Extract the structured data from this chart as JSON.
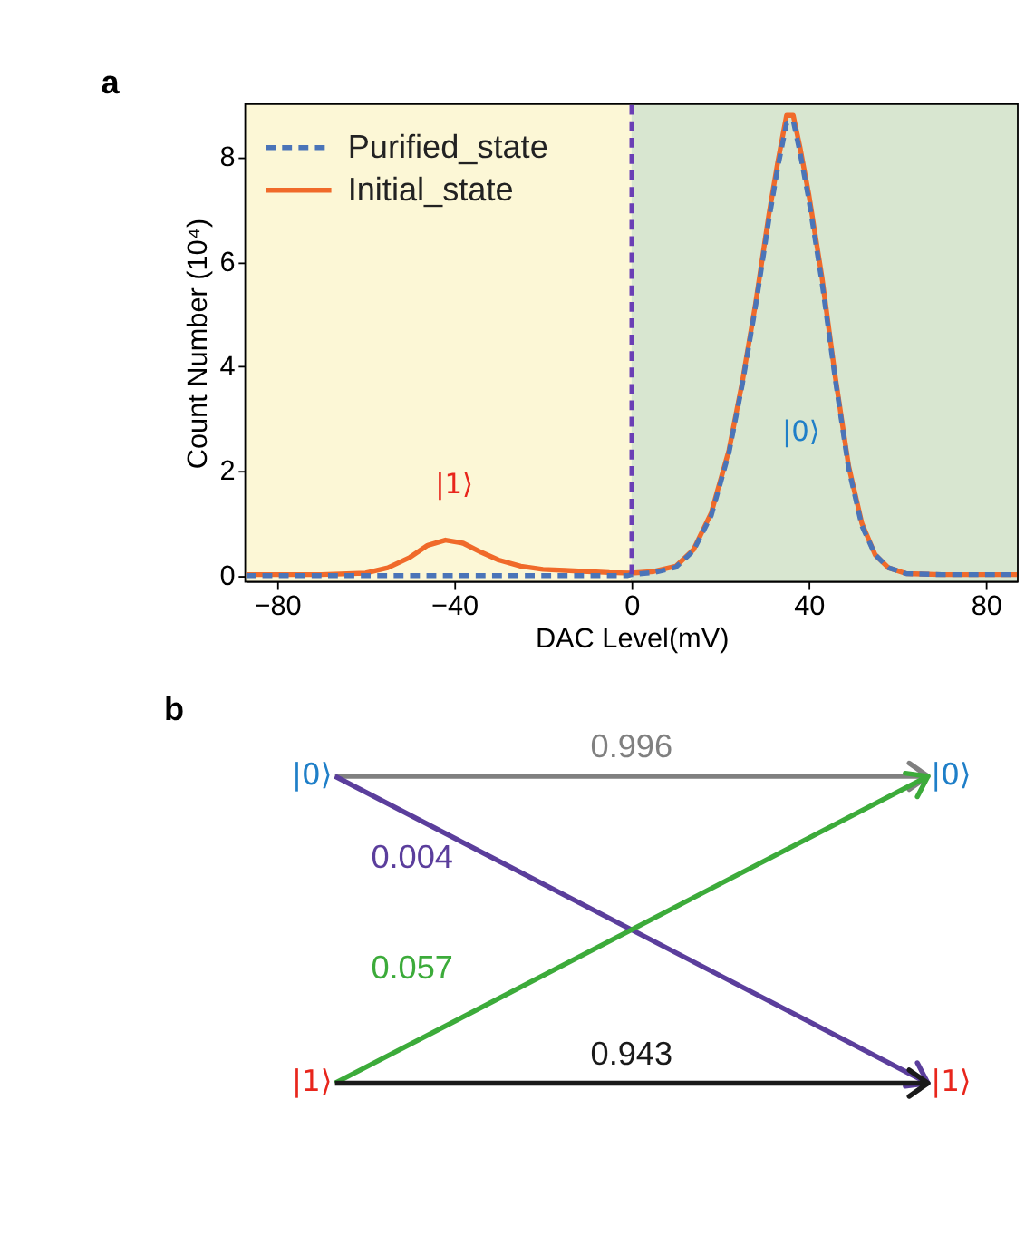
{
  "chart_data": [
    {
      "type": "line",
      "title": "a",
      "xlabel": "DAC Level(mV)",
      "ylabel": "Count Number (10⁴)",
      "xlim": [
        -87,
        87
      ],
      "xticks": [
        -80,
        -40,
        0,
        40,
        80
      ],
      "ylim": [
        -0.1,
        9
      ],
      "yticks": [
        0,
        2,
        4,
        6,
        8
      ],
      "grid": false,
      "legend": "top left",
      "series": [
        {
          "name": "Purified_state",
          "color": "#4a74b8",
          "line_style": "dashed",
          "x": [
            -87,
            -1,
            0,
            5,
            10,
            14,
            18,
            22,
            25,
            28,
            31,
            33,
            35,
            36.5,
            38,
            40,
            43,
            46,
            49,
            52,
            55,
            58,
            62,
            70,
            87
          ],
          "values": [
            0,
            0,
            0.02,
            0.06,
            0.16,
            0.48,
            1.15,
            2.35,
            3.65,
            5.15,
            6.8,
            7.8,
            8.65,
            8.7,
            8.1,
            7.2,
            5.6,
            3.75,
            2.05,
            0.95,
            0.4,
            0.15,
            0.04,
            0.02,
            0.02
          ]
        },
        {
          "name": "Initial_state",
          "color": "#f06a2a",
          "line_style": "solid",
          "x": [
            -87,
            -70,
            -60,
            -55,
            -50,
            -46,
            -42,
            -38,
            -34,
            -30,
            -25,
            -20,
            -15,
            -10,
            -5,
            0,
            5,
            10,
            14,
            18,
            22,
            25,
            28,
            31,
            33,
            35,
            36.5,
            38,
            40,
            43,
            46,
            49,
            52,
            55,
            58,
            62,
            70,
            87
          ],
          "values": [
            0.02,
            0.02,
            0.05,
            0.15,
            0.35,
            0.58,
            0.68,
            0.62,
            0.45,
            0.3,
            0.18,
            0.12,
            0.1,
            0.08,
            0.06,
            0.05,
            0.08,
            0.18,
            0.5,
            1.2,
            2.4,
            3.7,
            5.2,
            6.9,
            7.9,
            8.8,
            8.8,
            8.2,
            7.3,
            5.7,
            3.8,
            2.1,
            1.0,
            0.4,
            0.15,
            0.04,
            0.02,
            0.02
          ]
        }
      ],
      "bands": [
        {
          "axis": "x",
          "from": -87,
          "to": 0,
          "color": "#fcf7d6"
        },
        {
          "axis": "x",
          "from": 0,
          "to": 87,
          "color": "#d8e6d0"
        }
      ],
      "ref_lines": [
        {
          "axis": "x",
          "value": 0,
          "color": "#6a3fb5",
          "line_style": "dashed"
        }
      ],
      "annotations": [
        "|1⟩",
        "|0⟩"
      ]
    },
    {
      "type": "other",
      "title": "b",
      "categories": [
        null,
        null,
        null,
        null
      ],
      "annotations": [
        "|0⟩",
        "|1⟩",
        "|0⟩",
        "|1⟩"
      ],
      "values": [
        0.996,
        0.004,
        0.057,
        0.943
      ],
      "data_labels": true,
      "colors": [
        "#808080",
        "#5b3e9c",
        "#3cab3a",
        "#1a1a1a"
      ]
    }
  ]
}
